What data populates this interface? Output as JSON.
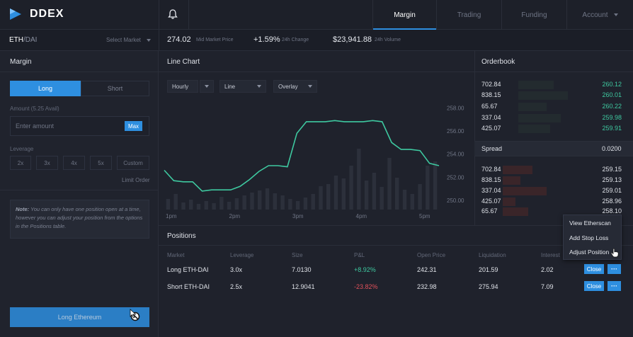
{
  "brand": {
    "name": "DDEX"
  },
  "nav": {
    "tabs": [
      {
        "label": "Margin",
        "active": true
      },
      {
        "label": "Trading",
        "active": false
      },
      {
        "label": "Funding",
        "active": false
      },
      {
        "label": "Account",
        "active": false
      }
    ]
  },
  "ticker": {
    "pair_base": "ETH",
    "pair_quote": "/DAI",
    "select_market": "Select Market",
    "price": "274.02",
    "price_label": "Mid Market Price",
    "change": "+1.59%",
    "change_label": "24h Change",
    "volume": "$23,941.88",
    "volume_label": "24h Volume"
  },
  "margin_panel": {
    "title": "Margin",
    "long_label": "Long",
    "short_label": "Short",
    "amount_label": "Amount (5.25 Avail)",
    "amount_placeholder": "Enter amount",
    "max_label": "Max",
    "leverage_label": "Leverage",
    "leverage_options": [
      "2x",
      "3x",
      "4x",
      "5x",
      "Custom"
    ],
    "limit_order_label": "Limit Order",
    "note_prefix": "Note:",
    "note_text": " You can only have one position open at a time, however you can adjust your position from the options in the Positions table.",
    "submit_label": "Long Ethereum"
  },
  "chart_panel": {
    "title": "Line Chart",
    "dropdowns": [
      "Hourly",
      "",
      "Line",
      "Overlay"
    ]
  },
  "chart_data": {
    "type": "line",
    "x_ticks": [
      "1pm",
      "2pm",
      "3pm",
      "4pm",
      "5pm"
    ],
    "y_ticks": [
      "258.00",
      "256.00",
      "254.00",
      "252.00",
      "250.00"
    ],
    "ylim": [
      249.2,
      259.0
    ],
    "line_points": [
      252.6,
      251.7,
      251.6,
      251.6,
      250.8,
      250.9,
      250.9,
      250.9,
      251.2,
      251.8,
      252.5,
      253.0,
      253.0,
      252.9,
      255.8,
      256.8,
      256.8,
      256.8,
      256.9,
      256.8,
      256.8,
      256.8,
      256.9,
      256.8,
      255.0,
      254.4,
      254.4,
      254.3,
      253.2,
      253.0
    ],
    "volume_bars": [
      0.15,
      0.22,
      0.1,
      0.14,
      0.08,
      0.12,
      0.09,
      0.18,
      0.11,
      0.16,
      0.2,
      0.24,
      0.27,
      0.3,
      0.23,
      0.2,
      0.15,
      0.12,
      0.17,
      0.22,
      0.33,
      0.36,
      0.48,
      0.44,
      0.62,
      0.86,
      0.41,
      0.52,
      0.32,
      0.73,
      0.45,
      0.28,
      0.22,
      0.36,
      0.62,
      0.68
    ]
  },
  "orderbook": {
    "title": "Orderbook",
    "bids": [
      {
        "price": "702.84",
        "size": "260.12"
      },
      {
        "price": "838.15",
        "size": "260.01"
      },
      {
        "price": "65.67",
        "size": "260.22"
      },
      {
        "price": "337.04",
        "size": "259.98"
      },
      {
        "price": "425.07",
        "size": "259.91"
      }
    ],
    "spread_label": "Spread",
    "spread_value": "0.0200",
    "asks": [
      {
        "price": "702.84",
        "size": "259.15"
      },
      {
        "price": "838.15",
        "size": "259.13"
      },
      {
        "price": "337.04",
        "size": "259.01"
      },
      {
        "price": "425.07",
        "size": "258.96"
      },
      {
        "price": "65.67",
        "size": "258.10"
      }
    ]
  },
  "positions": {
    "title": "Positions",
    "headers": [
      "Market",
      "Leverage",
      "Size",
      "P&L",
      "Open Price",
      "Liquidation",
      "Interest"
    ],
    "rows": [
      {
        "market": "Long ETH-DAI",
        "leverage": "3.0x",
        "size": "7.0130",
        "pnl": "+8.92%",
        "open_price": "242.31",
        "liquidation": "201.59",
        "interest": "2.02",
        "close": "Close",
        "more": "···"
      },
      {
        "market": "Short ETH-DAI",
        "leverage": "2.5x",
        "size": "12.9041",
        "pnl": "-23.82%",
        "open_price": "232.98",
        "liquidation": "275.94",
        "interest": "7.09",
        "close": "Close",
        "more": "···"
      }
    ]
  },
  "context_menu": {
    "items": [
      "View Etherscan",
      "Add Stop Loss",
      "Adjust Position"
    ]
  },
  "colors": {
    "accent": "#2e8fe0",
    "positive": "#3ec9a0",
    "negative": "#e0505a",
    "line": "#3ec9a0"
  }
}
